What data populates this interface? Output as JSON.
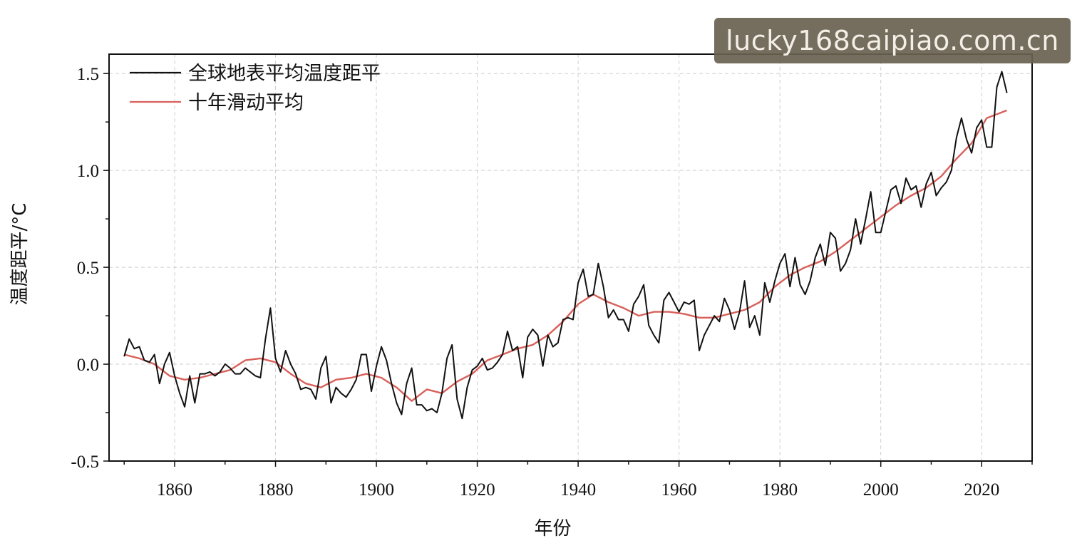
{
  "watermark": "lucky168caipiao.com.cn",
  "chart_data": {
    "type": "line",
    "title": "",
    "xlabel": "年份",
    "ylabel": "温度距平/°C",
    "xlim": [
      1847,
      2030
    ],
    "ylim": [
      -0.5,
      1.6
    ],
    "xticks": [
      1860,
      1880,
      1900,
      1920,
      1940,
      1960,
      1980,
      2000,
      2020
    ],
    "yticks": [
      -0.5,
      0.0,
      0.5,
      1.0,
      1.5
    ],
    "ytick_labels": [
      "-0.5",
      "0.0",
      "0.5",
      "1.0",
      "1.5"
    ],
    "grid": true,
    "legend": "top-left",
    "series": [
      {
        "name": "全球地表平均温度距平",
        "color": "#111111",
        "x": [
          1850,
          1851,
          1852,
          1853,
          1854,
          1855,
          1856,
          1857,
          1858,
          1859,
          1860,
          1861,
          1862,
          1863,
          1864,
          1865,
          1866,
          1867,
          1868,
          1869,
          1870,
          1871,
          1872,
          1873,
          1874,
          1875,
          1876,
          1877,
          1878,
          1879,
          1880,
          1881,
          1882,
          1883,
          1884,
          1885,
          1886,
          1887,
          1888,
          1889,
          1890,
          1891,
          1892,
          1893,
          1894,
          1895,
          1896,
          1897,
          1898,
          1899,
          1900,
          1901,
          1902,
          1903,
          1904,
          1905,
          1906,
          1907,
          1908,
          1909,
          1910,
          1911,
          1912,
          1913,
          1914,
          1915,
          1916,
          1917,
          1918,
          1919,
          1920,
          1921,
          1922,
          1923,
          1924,
          1925,
          1926,
          1927,
          1928,
          1929,
          1930,
          1931,
          1932,
          1933,
          1934,
          1935,
          1936,
          1937,
          1938,
          1939,
          1940,
          1941,
          1942,
          1943,
          1944,
          1945,
          1946,
          1947,
          1948,
          1949,
          1950,
          1951,
          1952,
          1953,
          1954,
          1955,
          1956,
          1957,
          1958,
          1959,
          1960,
          1961,
          1962,
          1963,
          1964,
          1965,
          1966,
          1967,
          1968,
          1969,
          1970,
          1971,
          1972,
          1973,
          1974,
          1975,
          1976,
          1977,
          1978,
          1979,
          1980,
          1981,
          1982,
          1983,
          1984,
          1985,
          1986,
          1987,
          1988,
          1989,
          1990,
          1991,
          1992,
          1993,
          1994,
          1995,
          1996,
          1997,
          1998,
          1999,
          2000,
          2001,
          2002,
          2003,
          2004,
          2005,
          2006,
          2007,
          2008,
          2009,
          2010,
          2011,
          2012,
          2013,
          2014,
          2015,
          2016,
          2017,
          2018,
          2019,
          2020,
          2021,
          2022,
          2023,
          2024,
          2025
        ],
        "values": [
          0.04,
          0.13,
          0.08,
          0.09,
          0.02,
          0.01,
          0.05,
          -0.1,
          0.0,
          0.06,
          -0.06,
          -0.15,
          -0.22,
          -0.06,
          -0.2,
          -0.05,
          -0.05,
          -0.04,
          -0.06,
          -0.04,
          0.0,
          -0.02,
          -0.05,
          -0.05,
          -0.02,
          -0.04,
          -0.06,
          -0.07,
          0.13,
          0.29,
          0.03,
          -0.04,
          0.07,
          0.0,
          -0.05,
          -0.13,
          -0.12,
          -0.13,
          -0.18,
          -0.02,
          0.04,
          -0.2,
          -0.12,
          -0.15,
          -0.17,
          -0.13,
          -0.08,
          0.05,
          0.05,
          -0.14,
          -0.01,
          0.09,
          0.02,
          -0.1,
          -0.2,
          -0.26,
          -0.1,
          -0.02,
          -0.21,
          -0.21,
          -0.24,
          -0.23,
          -0.25,
          -0.15,
          0.03,
          0.1,
          -0.18,
          -0.28,
          -0.12,
          -0.03,
          -0.01,
          0.03,
          -0.03,
          -0.02,
          0.01,
          0.05,
          0.17,
          0.07,
          0.09,
          -0.07,
          0.14,
          0.18,
          0.15,
          -0.01,
          0.15,
          0.09,
          0.11,
          0.23,
          0.24,
          0.23,
          0.42,
          0.49,
          0.35,
          0.36,
          0.52,
          0.4,
          0.24,
          0.28,
          0.23,
          0.23,
          0.17,
          0.31,
          0.35,
          0.41,
          0.2,
          0.15,
          0.11,
          0.33,
          0.37,
          0.32,
          0.27,
          0.32,
          0.31,
          0.33,
          0.07,
          0.15,
          0.2,
          0.25,
          0.22,
          0.34,
          0.28,
          0.18,
          0.27,
          0.43,
          0.19,
          0.25,
          0.15,
          0.42,
          0.32,
          0.43,
          0.52,
          0.57,
          0.4,
          0.55,
          0.41,
          0.36,
          0.43,
          0.55,
          0.62,
          0.51,
          0.68,
          0.65,
          0.48,
          0.52,
          0.59,
          0.75,
          0.62,
          0.75,
          0.89,
          0.68,
          0.68,
          0.79,
          0.9,
          0.92,
          0.83,
          0.96,
          0.9,
          0.92,
          0.81,
          0.93,
          0.99,
          0.87,
          0.91,
          0.94,
          1.0,
          1.17,
          1.27,
          1.16,
          1.09,
          1.22,
          1.26,
          1.12,
          1.12,
          1.43,
          1.51,
          1.4
        ]
      },
      {
        "name": "十年滑动平均",
        "color": "#d9605a",
        "x": [
          1850,
          1853,
          1856,
          1859,
          1862,
          1865,
          1868,
          1871,
          1874,
          1877,
          1880,
          1883,
          1886,
          1889,
          1892,
          1895,
          1898,
          1901,
          1904,
          1907,
          1910,
          1913,
          1916,
          1919,
          1922,
          1925,
          1928,
          1931,
          1934,
          1937,
          1940,
          1943,
          1946,
          1949,
          1952,
          1955,
          1958,
          1961,
          1964,
          1967,
          1970,
          1973,
          1976,
          1979,
          1982,
          1985,
          1988,
          1991,
          1994,
          1997,
          2000,
          2003,
          2006,
          2009,
          2012,
          2015,
          2018,
          2021,
          2024,
          2025
        ],
        "values": [
          0.05,
          0.03,
          0.0,
          -0.06,
          -0.08,
          -0.07,
          -0.05,
          -0.03,
          0.02,
          0.03,
          0.01,
          -0.05,
          -0.1,
          -0.12,
          -0.08,
          -0.07,
          -0.05,
          -0.07,
          -0.12,
          -0.19,
          -0.13,
          -0.15,
          -0.09,
          -0.05,
          0.02,
          0.05,
          0.08,
          0.1,
          0.15,
          0.22,
          0.31,
          0.36,
          0.32,
          0.29,
          0.25,
          0.27,
          0.27,
          0.26,
          0.24,
          0.24,
          0.26,
          0.28,
          0.32,
          0.4,
          0.46,
          0.5,
          0.53,
          0.58,
          0.64,
          0.7,
          0.76,
          0.82,
          0.87,
          0.91,
          0.97,
          1.06,
          1.14,
          1.27,
          1.3,
          1.31
        ]
      }
    ]
  }
}
